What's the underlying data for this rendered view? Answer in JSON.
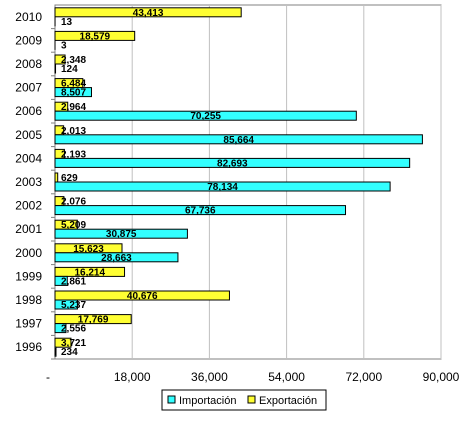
{
  "chart_data": {
    "type": "bar",
    "orientation": "horizontal",
    "categories": [
      "1996",
      "1997",
      "1998",
      "1999",
      "2000",
      "2001",
      "2002",
      "2003",
      "2004",
      "2005",
      "2006",
      "2007",
      "2008",
      "2009",
      "2010"
    ],
    "series": [
      {
        "name": "Importación",
        "color": "#33ffff",
        "values": [
          234,
          2556,
          5237,
          2861,
          28663,
          30875,
          67736,
          78134,
          82693,
          85664,
          70255,
          8507,
          124,
          3,
          13
        ],
        "labels": [
          "234",
          "2,556",
          "5,237",
          "2,861",
          "28,663",
          "30,875",
          "67,736",
          "78,134",
          "82,693",
          "85,664",
          "70,255",
          "8,507",
          "124",
          "3",
          "13"
        ]
      },
      {
        "name": "Exportación",
        "color": "#ffff33",
        "values": [
          3721,
          17769,
          40676,
          16214,
          15623,
          5209,
          2076,
          629,
          2193,
          2013,
          2964,
          6484,
          2348,
          18579,
          43413
        ],
        "labels": [
          "3,721",
          "17,769",
          "40,676",
          "16,214",
          "15,623",
          "5,209",
          "2,076",
          "629",
          "2,193",
          "2,013",
          "2,964",
          "6,484",
          "2,348",
          "18,579",
          "43,413"
        ]
      }
    ],
    "x_ticks": [
      "-",
      "18,000",
      "36,000",
      "54,000",
      "72,000",
      "90,000"
    ],
    "xlim": [
      0,
      90000
    ],
    "grid": true,
    "legend_position": "bottom"
  }
}
